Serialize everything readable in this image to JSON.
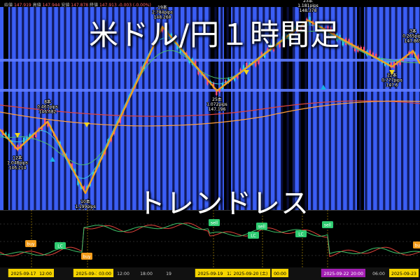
{
  "header": {
    "title": "米ドル/円１時間足",
    "subtitle": "トレンドレス",
    "ohlc": [
      {
        "label": "始値",
        "value": "147.919"
      },
      {
        "label": "高値",
        "value": "147.944"
      },
      {
        "label": "安値",
        "value": "147.878"
      },
      {
        "label": "終値",
        "value": "147.913"
      },
      {
        "label": "",
        "value": "-0.003 (-0.00%)"
      }
    ]
  },
  "colors": {
    "background": "#000000",
    "session_band": "#3b5ef5",
    "zigzag": "#f0a020",
    "ma_red": "#e0443c",
    "ma_orange": "#ff9d3a",
    "ma_green": "#4cc070",
    "ma_cyan": "#36c6e0",
    "osc_green": "#3ec46a",
    "osc_red": "#e4433c",
    "buy_badge": "#f39c1a",
    "sell_badge": "#2ecc71",
    "lc_badge": "#2ecc71",
    "up_triangle": "#1ab0e0",
    "down_triangle": "#f2d41a"
  },
  "chart_data": {
    "type": "line",
    "title": "米ドル/円１時間足",
    "subtitle": "トレンドレス",
    "zigzag_pivots": [
      {
        "bars": "12本",
        "pips": "1.048pips",
        "price": 146.214,
        "kind": "low"
      },
      {
        "bars": "8本",
        "pips": "0.467pips",
        "price": 146.682,
        "kind": "high"
      },
      {
        "bars": "10本",
        "pips": "1.199pips",
        "price": 145.483,
        "kind": "low"
      },
      {
        "bars": "19本",
        "pips": "2.784pips",
        "price": 148.268,
        "kind": "high"
      },
      {
        "bars": "25本",
        "pips": "1.072pips",
        "price": 147.196,
        "kind": "low"
      },
      {
        "bars": "23本",
        "pips": "1.181pips",
        "price": 148.378,
        "kind": "high"
      },
      {
        "bars": "22本",
        "pips": "0.777pips",
        "price": 147.6,
        "kind": "low"
      },
      {
        "bars": "3本",
        "pips": "0.265pips",
        "price": 147.865,
        "kind": "high"
      }
    ],
    "signals": [
      {
        "type": "buy"
      },
      {
        "type": "LC"
      },
      {
        "type": "buy"
      },
      {
        "type": "sell"
      },
      {
        "type": "LC"
      },
      {
        "type": "sell"
      },
      {
        "type": "LC"
      },
      {
        "type": "sell"
      },
      {
        "type": "buy"
      }
    ],
    "x_ticks": [
      {
        "label": "2025-09-17 (水)",
        "kind": "date"
      },
      {
        "label": "12:00",
        "kind": "time"
      },
      {
        "label": "2025-09-18 (木)",
        "kind": "date"
      },
      {
        "label": "03:00",
        "kind": "time"
      },
      {
        "label": "12:00",
        "kind": "plain"
      },
      {
        "label": "18:00",
        "kind": "plain"
      },
      {
        "label": "19",
        "kind": "plain"
      },
      {
        "label": "2025-09-19 (金)",
        "kind": "date"
      },
      {
        "label": "12:00",
        "kind": "time"
      },
      {
        "label": "2025-09-20 (土)",
        "kind": "date"
      },
      {
        "label": "00:00",
        "kind": "time"
      },
      {
        "label": "2025-09-22 (月)",
        "kind": "date-hi"
      },
      {
        "label": "20:00",
        "kind": "time-hi"
      },
      {
        "label": "06:00",
        "kind": "plain"
      },
      {
        "label": "2025-09-23",
        "kind": "date"
      }
    ],
    "grid": false,
    "legend": "none"
  }
}
